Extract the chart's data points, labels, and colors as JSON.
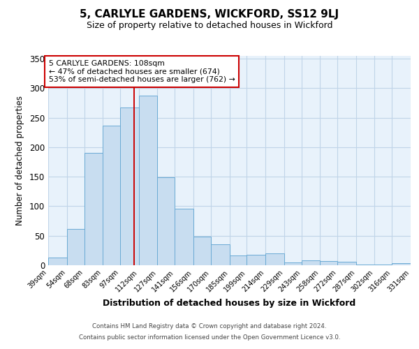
{
  "title": "5, CARLYLE GARDENS, WICKFORD, SS12 9LJ",
  "subtitle": "Size of property relative to detached houses in Wickford",
  "xlabel": "Distribution of detached houses by size in Wickford",
  "ylabel": "Number of detached properties",
  "bin_edges": [
    39,
    54,
    68,
    83,
    97,
    112,
    127,
    141,
    156,
    170,
    185,
    199,
    214,
    229,
    243,
    258,
    272,
    287,
    302,
    316,
    331
  ],
  "bar_heights": [
    13,
    62,
    191,
    237,
    268,
    287,
    149,
    96,
    48,
    35,
    17,
    18,
    20,
    5,
    8,
    7,
    6,
    1,
    1,
    3
  ],
  "bar_color": "#c8ddf0",
  "bar_edge_color": "#6aaad4",
  "grid_color": "#c0d4e8",
  "background_color": "#e8f2fb",
  "red_line_x": 108,
  "ylim": [
    0,
    355
  ],
  "yticks": [
    0,
    50,
    100,
    150,
    200,
    250,
    300,
    350
  ],
  "annotation_title": "5 CARLYLE GARDENS: 108sqm",
  "annotation_line1": "← 47% of detached houses are smaller (674)",
  "annotation_line2": "53% of semi-detached houses are larger (762) →",
  "footer_line1": "Contains HM Land Registry data © Crown copyright and database right 2024.",
  "footer_line2": "Contains public sector information licensed under the Open Government Licence v3.0."
}
